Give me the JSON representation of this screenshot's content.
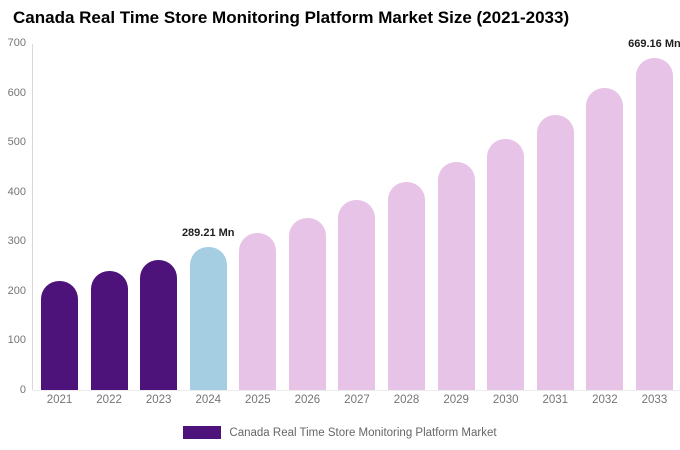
{
  "chart_data": {
    "type": "bar",
    "title": "Canada Real Time Store Monitoring Platform Market Size (2021-2033)",
    "categories": [
      "2021",
      "2022",
      "2023",
      "2024",
      "2025",
      "2026",
      "2027",
      "2028",
      "2029",
      "2030",
      "2031",
      "2032",
      "2033"
    ],
    "values": [
      219,
      240,
      263,
      289.21,
      317,
      348,
      383,
      420,
      461,
      506,
      555,
      610,
      669.16
    ],
    "bar_colors": [
      "#4E137B",
      "#4E137B",
      "#4E137B",
      "#A6CEE3",
      "#E7C3E7",
      "#E7C3E7",
      "#E7C3E7",
      "#E7C3E7",
      "#E7C3E7",
      "#E7C3E7",
      "#E7C3E7",
      "#E7C3E7",
      "#E7C3E7"
    ],
    "value_labels": {
      "2024": "289.21 Mn",
      "2033": "669.16 Mn"
    },
    "xlabel": "",
    "ylabel": "",
    "ylim": [
      0,
      700
    ],
    "yticks": [
      0,
      100,
      200,
      300,
      400,
      500,
      600,
      700
    ],
    "grid": false,
    "legend_position": "bottom",
    "legend": [
      {
        "label": "Canada Real Time Store Monitoring Platform Market",
        "color": "#4E137B"
      }
    ]
  },
  "colors": {
    "historical_bar": "#4E137B",
    "base_year_bar": "#A6CEE3",
    "forecast_bar": "#E7C3E7",
    "axis_line": "#D9D9D9",
    "tick_text": "#757575",
    "legend_text": "#666666",
    "value_label_text": "#1F1F1F",
    "title_text": "#000000"
  }
}
